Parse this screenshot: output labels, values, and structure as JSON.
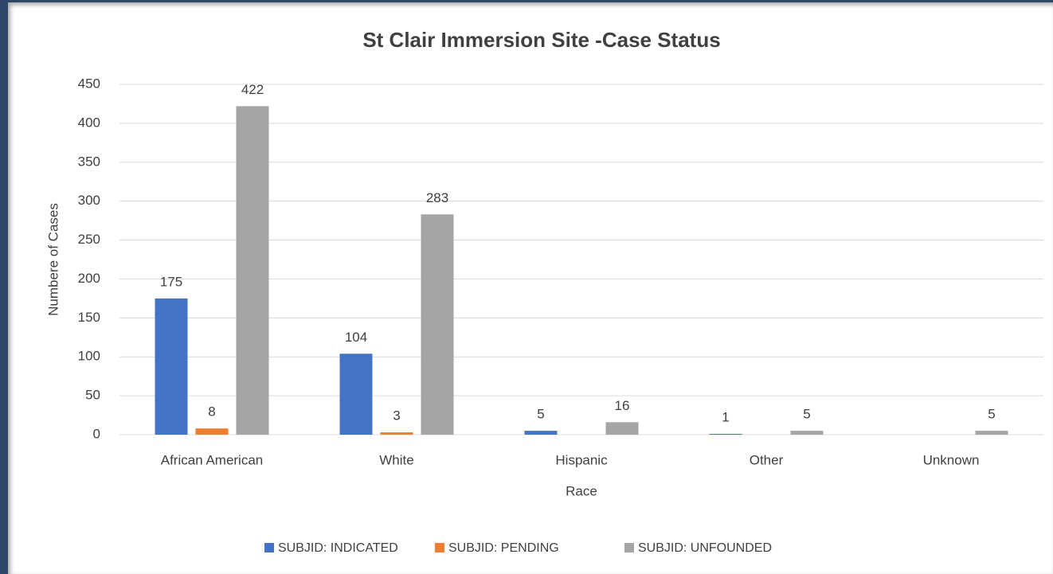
{
  "chart_data": {
    "type": "bar",
    "title": "St Clair Immersion Site -Case Status",
    "x_label": "Race",
    "y_label": "Numbere of Cases",
    "categories": [
      "African American",
      "White",
      "Hispanic",
      "Other",
      "Unknown"
    ],
    "series": [
      {
        "name": "SUBJID: INDICATED",
        "color": "#4472c4",
        "values": [
          175,
          104,
          5,
          1,
          null
        ]
      },
      {
        "name": "SUBJID: PENDING",
        "color": "#ed7d31",
        "values": [
          8,
          3,
          null,
          null,
          null
        ]
      },
      {
        "name": "SUBJID: UNFOUNDED",
        "color": "#a5a5a5",
        "values": [
          422,
          283,
          16,
          5,
          5
        ]
      }
    ],
    "ylim": [
      0,
      450
    ],
    "yticks": [
      0,
      50,
      100,
      150,
      200,
      250,
      300,
      350,
      400,
      450
    ],
    "grid": true,
    "legend": "bottom"
  }
}
